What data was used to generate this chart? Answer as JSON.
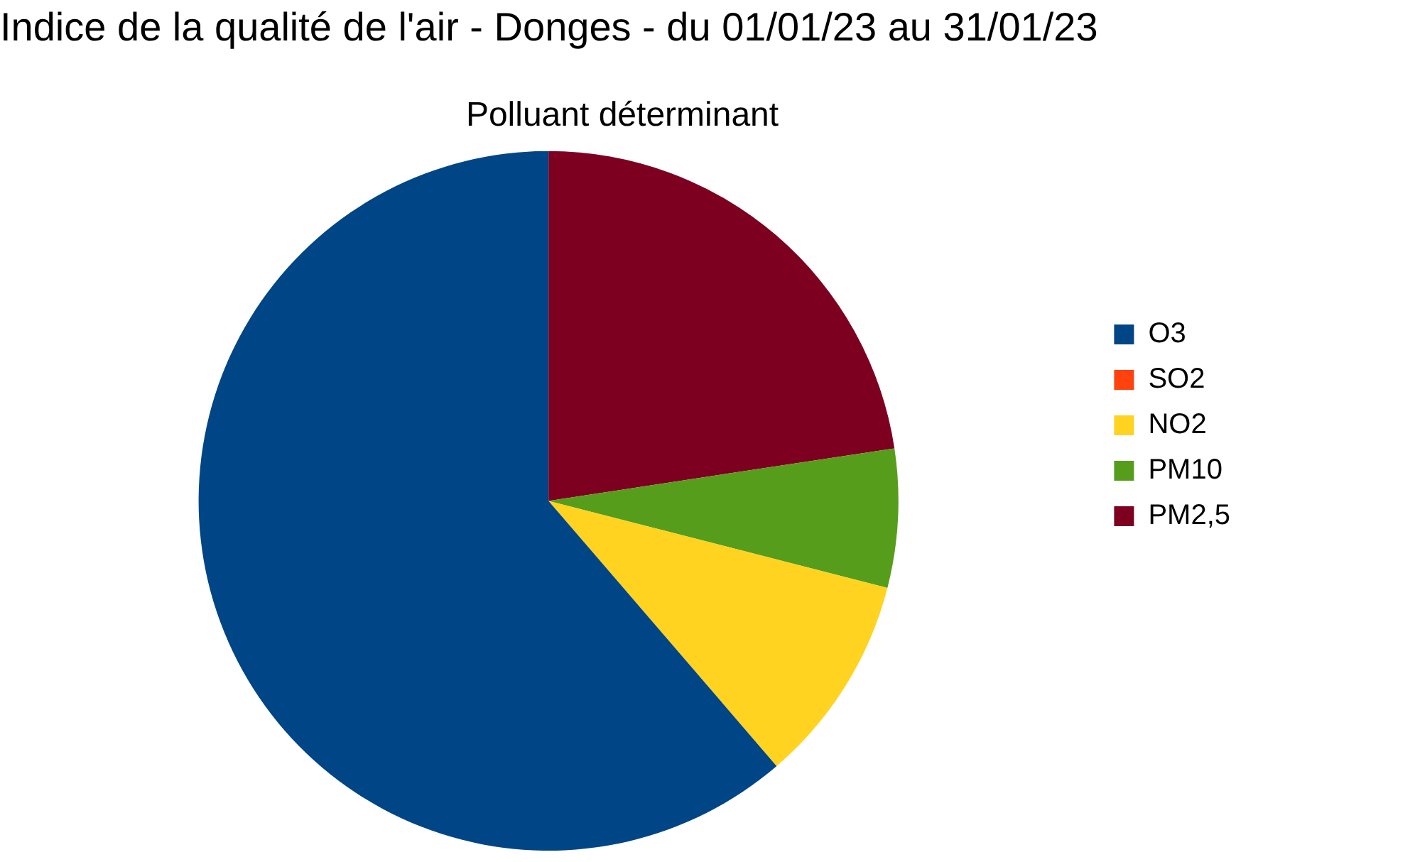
{
  "chart_data": {
    "type": "pie",
    "title": "Indice de la qualité de l'air - Donges - du 01/01/23 au 31/01/23",
    "subtitle": "Polluant déterminant",
    "categories": [
      "O3",
      "SO2",
      "NO2",
      "PM10",
      "PM2,5"
    ],
    "values": [
      61.3,
      0,
      9.7,
      6.4,
      22.6
    ],
    "colors": [
      "#004586",
      "#ff420e",
      "#ffd320",
      "#579d1c",
      "#7e0021"
    ],
    "legend": "right"
  }
}
